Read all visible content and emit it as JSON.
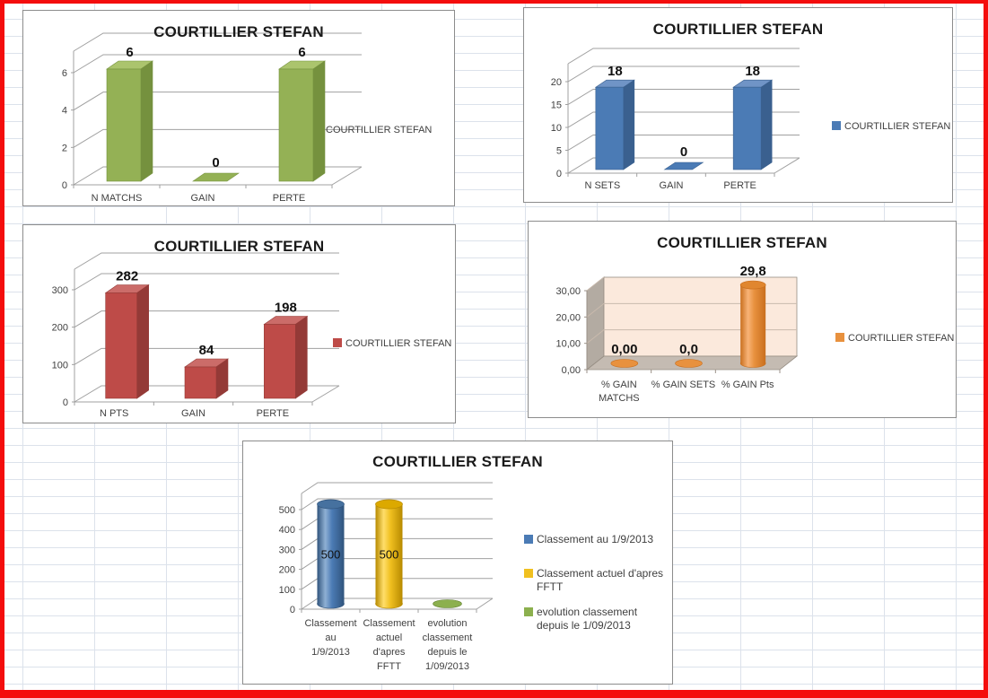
{
  "page": {
    "background": "#FFFFFF",
    "frame_color": "#F40D0D",
    "sheet_grid_color": "#DCE2EB"
  },
  "chart_data": [
    {
      "name": "matchs",
      "type": "bar",
      "variant": "3d-box",
      "title": "COURTILLIER STEFAN",
      "categories": [
        [
          "N MATCHS"
        ],
        [
          "GAIN"
        ],
        [
          "PERTE"
        ]
      ],
      "values": [
        6,
        0,
        6
      ],
      "labels": [
        "6",
        "0",
        "6"
      ],
      "y_ticks": [
        "0",
        "2",
        "4",
        "6"
      ],
      "y_tick_values": [
        0,
        2,
        4,
        6
      ],
      "ylim": [
        0,
        6
      ],
      "legend_position": "right",
      "legend": [
        {
          "lines": [
            "COURTILLIER STEFAN"
          ],
          "color": "#94B155"
        }
      ],
      "colors": {
        "front": "#94B155",
        "top": "#ABC46D",
        "side": "#75913E"
      }
    },
    {
      "name": "sets",
      "type": "bar",
      "variant": "3d-box",
      "title": "COURTILLIER STEFAN",
      "categories": [
        [
          "N SETS"
        ],
        [
          "GAIN"
        ],
        [
          "PERTE"
        ]
      ],
      "values": [
        18,
        0,
        18
      ],
      "labels": [
        "18",
        "0",
        "18"
      ],
      "y_ticks": [
        "0",
        "5",
        "10",
        "15",
        "20"
      ],
      "y_tick_values": [
        0,
        5,
        10,
        15,
        20
      ],
      "ylim": [
        0,
        20
      ],
      "legend_position": "right",
      "legend": [
        {
          "lines": [
            "COURTILLIER STEFAN"
          ],
          "color": "#4B7BB5"
        }
      ],
      "colors": {
        "front": "#4B7BB5",
        "top": "#7094C6",
        "side": "#3A608F"
      }
    },
    {
      "name": "points",
      "type": "bar",
      "variant": "3d-box",
      "title": "COURTILLIER STEFAN",
      "categories": [
        [
          "N PTS"
        ],
        [
          "GAIN"
        ],
        [
          "PERTE"
        ]
      ],
      "values": [
        282,
        84,
        198
      ],
      "labels": [
        "282",
        "84",
        "198"
      ],
      "y_ticks": [
        "0",
        "100",
        "200",
        "300"
      ],
      "y_tick_values": [
        0,
        100,
        200,
        300
      ],
      "ylim": [
        0,
        300
      ],
      "legend_position": "right",
      "legend": [
        {
          "lines": [
            "COURTILLIER STEFAN"
          ],
          "color": "#BE4B48"
        }
      ],
      "colors": {
        "front": "#BE4B48",
        "top": "#CB6C69",
        "side": "#943A37"
      }
    },
    {
      "name": "percent-gain",
      "type": "bar",
      "variant": "3d-cylinder",
      "title": "COURTILLIER STEFAN",
      "categories": [
        [
          "% GAIN",
          "MATCHS"
        ],
        [
          "% GAIN SETS"
        ],
        [
          "% GAIN Pts"
        ]
      ],
      "values": [
        0,
        0,
        29.8
      ],
      "labels": [
        "0,00",
        "0,0",
        "29,8"
      ],
      "y_ticks": [
        "0,00",
        "10,00",
        "20,00",
        "30,00"
      ],
      "y_tick_values": [
        0,
        10,
        20,
        30
      ],
      "ylim": [
        0,
        30
      ],
      "legend_position": "right",
      "legend": [
        {
          "lines": [
            "COURTILLIER STEFAN"
          ],
          "color": "#E8913E"
        }
      ],
      "colors": {
        "main": "#E8913E",
        "light": "#F8B377",
        "dark": "#C96F1E",
        "top": "#E0862F"
      },
      "walls": {
        "back": "#FBE9DC",
        "side": "#B3ABA2",
        "floor": "#C4BBB2",
        "grid": "#C9BAAD"
      }
    },
    {
      "name": "classement",
      "type": "bar",
      "variant": "3d-cylinder",
      "label_inside": true,
      "title": "COURTILLIER STEFAN",
      "categories": [
        [
          "Classement",
          "au",
          "1/9/2013"
        ],
        [
          "Classement",
          "actuel",
          "d'apres",
          "FFTT"
        ],
        [
          "evolution",
          "classement",
          "depuis le",
          "1/09/2013"
        ]
      ],
      "values": [
        500,
        500,
        0
      ],
      "labels": [
        "500",
        "500",
        ""
      ],
      "y_ticks": [
        "0",
        "100",
        "200",
        "300",
        "400",
        "500"
      ],
      "y_tick_values": [
        0,
        100,
        200,
        300,
        400,
        500
      ],
      "ylim": [
        0,
        500
      ],
      "legend_position": "right",
      "legend": [
        {
          "lines": [
            "Classement au 1/9/2013"
          ],
          "color": "#4B7BB5"
        },
        {
          "lines": [
            "Classement actuel d'apres",
            "FFTT"
          ],
          "color": "#F0C020"
        },
        {
          "lines": [
            "evolution classement",
            "depuis le 1/09/2013"
          ],
          "color": "#8CB04E"
        }
      ],
      "series_colors": [
        {
          "main": "#4B7BB5",
          "light": "#8FB0D4",
          "dark": "#30547C",
          "top": "#46719F"
        },
        {
          "main": "#F0C020",
          "light": "#FFDE6B",
          "dark": "#B78A00",
          "top": "#DCA900"
        },
        {
          "main": "#8CB04E",
          "light": "#8CB04E",
          "dark": "#5F7F2E",
          "top": "#8CB04E"
        }
      ]
    }
  ]
}
